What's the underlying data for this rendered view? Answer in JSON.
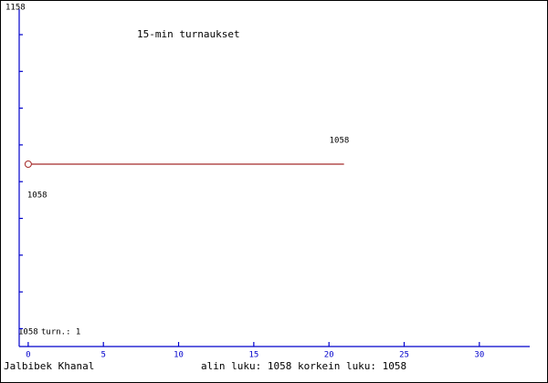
{
  "chart_data": {
    "type": "line",
    "title": "15-min turnaukset",
    "y_axis_labels": [
      "1158",
      "1058"
    ],
    "xlim": [
      -0.6,
      33.35
    ],
    "xticks": [
      0,
      5,
      10,
      15,
      20,
      25,
      30
    ],
    "ylim": [
      958,
      1158
    ],
    "series": [
      {
        "name": "turn.: 1",
        "color": "#a52a2a",
        "x": [
          0,
          21
        ],
        "values": [
          1058,
          1058
        ]
      }
    ],
    "footer_left": "Jalbibek Khanal",
    "footer_right": "alin luku: 1058  korkein luku: 1058"
  }
}
